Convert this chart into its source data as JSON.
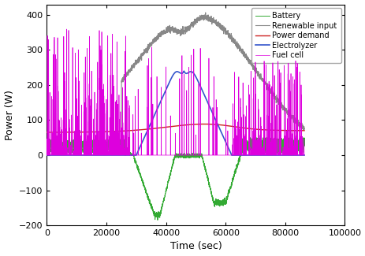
{
  "title": "",
  "xlabel": "Time (sec)",
  "ylabel": "Power (W)",
  "xlim": [
    0,
    100000
  ],
  "ylim": [
    -200,
    430
  ],
  "yticks": [
    -200,
    -100,
    0,
    100,
    200,
    300,
    400
  ],
  "xticks": [
    0,
    20000,
    40000,
    60000,
    80000,
    100000
  ],
  "legend_entries": [
    "Renewable input",
    "Power demand",
    "Electrolyzer",
    "Fuel cell",
    "Battery"
  ],
  "colors": {
    "renewable": "#888888",
    "demand": "#cc2222",
    "electrolyzer": "#3355cc",
    "fuel_cell": "#dd00dd",
    "battery": "#33aa33"
  },
  "figsize": [
    4.64,
    3.25
  ],
  "dpi": 100
}
